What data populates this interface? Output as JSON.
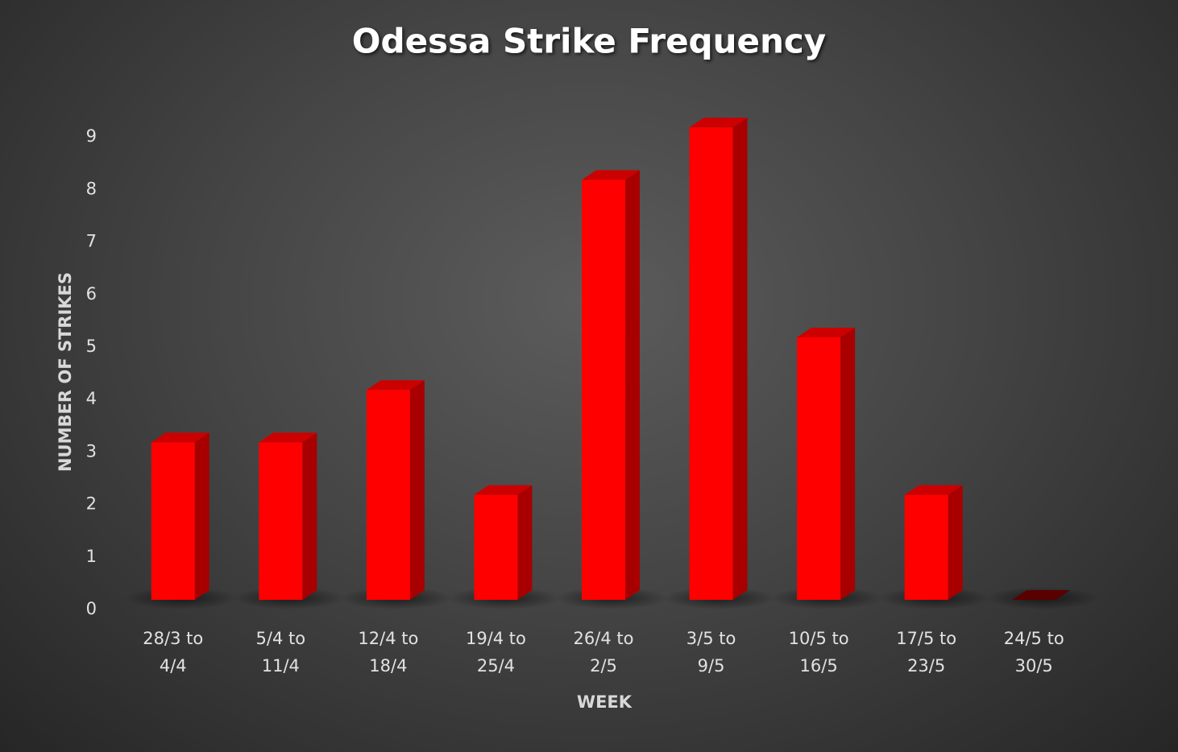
{
  "chart_data": {
    "type": "bar3d",
    "title": "Odessa Strike Frequency",
    "x_label": "WEEK",
    "y_label": "NUMBER OF STRIKES",
    "categories": [
      "28/3 to 4/4",
      "5/4 to 11/4",
      "12/4 to 18/4",
      "19/4 to 25/4",
      "26/4 to 2/5",
      "3/5 to 9/5",
      "10/5 to 16/5",
      "17/5 to 23/5",
      "24/5 to 30/5"
    ],
    "values": [
      3,
      3,
      4,
      2,
      8,
      9,
      5,
      2,
      0
    ],
    "color": "#ff0000",
    "ylim": [
      0,
      9.5
    ],
    "yticks": [
      0,
      1,
      2,
      3,
      4,
      5,
      6,
      7,
      8,
      9
    ],
    "grid": false
  }
}
